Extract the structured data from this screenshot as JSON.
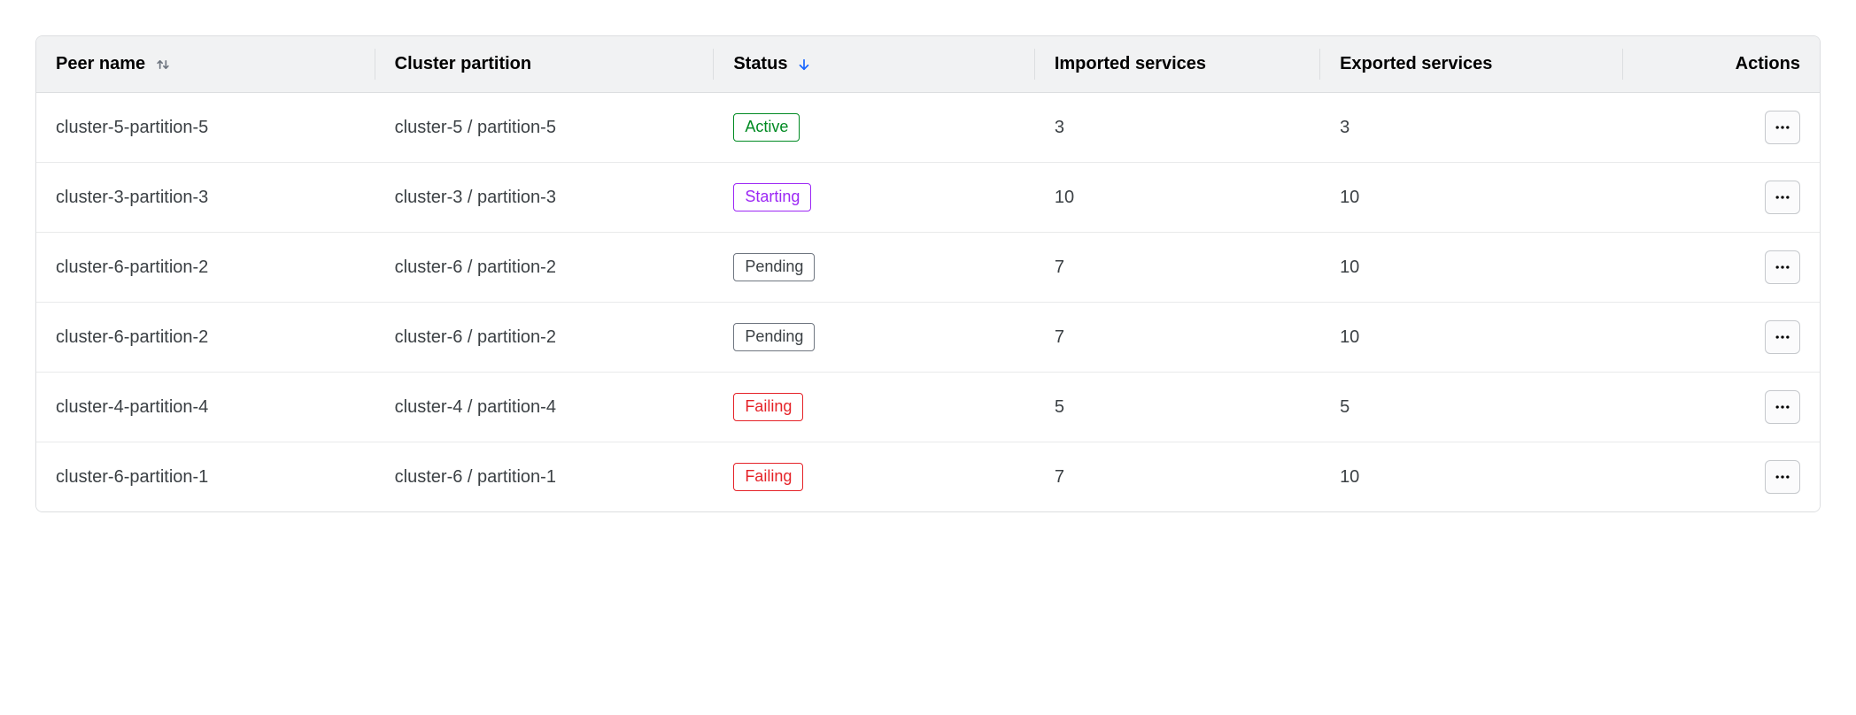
{
  "colors": {
    "header_bg": "#f1f2f3",
    "border": "#dcdee0",
    "row_border": "#e9eaeb",
    "text": "#3b4044",
    "header_text": "#000000",
    "sort_arrow_neutral": "#6f7680",
    "sort_arrow_active": "#1563ff",
    "btn_border": "#c5c8cc",
    "btn_bg": "#fbfbfc"
  },
  "status_styles": {
    "Active": {
      "color": "#008a22",
      "border": "#008a22"
    },
    "Starting": {
      "color": "#9c27f5",
      "border": "#9c27f5"
    },
    "Pending": {
      "color": "#3b4044",
      "border": "#6f7680"
    },
    "Failing": {
      "color": "#e52228",
      "border": "#e52228"
    }
  },
  "columns": {
    "peer_name": "Peer name",
    "cluster_partition": "Cluster partition",
    "status": "Status",
    "imported": "Imported services",
    "exported": "Exported services",
    "actions": "Actions"
  },
  "sort": {
    "peer_name": "unsorted",
    "status": "asc"
  },
  "rows": [
    {
      "peer_name": "cluster-5-partition-5",
      "cluster_partition": "cluster-5 / partition-5",
      "status": "Active",
      "imported": "3",
      "exported": "3"
    },
    {
      "peer_name": "cluster-3-partition-3",
      "cluster_partition": "cluster-3 / partition-3",
      "status": "Starting",
      "imported": "10",
      "exported": "10"
    },
    {
      "peer_name": "cluster-6-partition-2",
      "cluster_partition": "cluster-6 / partition-2",
      "status": "Pending",
      "imported": "7",
      "exported": "10"
    },
    {
      "peer_name": "cluster-6-partition-2",
      "cluster_partition": "cluster-6 / partition-2",
      "status": "Pending",
      "imported": "7",
      "exported": "10"
    },
    {
      "peer_name": "cluster-4-partition-4",
      "cluster_partition": "cluster-4 / partition-4",
      "status": "Failing",
      "imported": "5",
      "exported": "5"
    },
    {
      "peer_name": "cluster-6-partition-1",
      "cluster_partition": "cluster-6 / partition-1",
      "status": "Failing",
      "imported": "7",
      "exported": "10"
    }
  ]
}
